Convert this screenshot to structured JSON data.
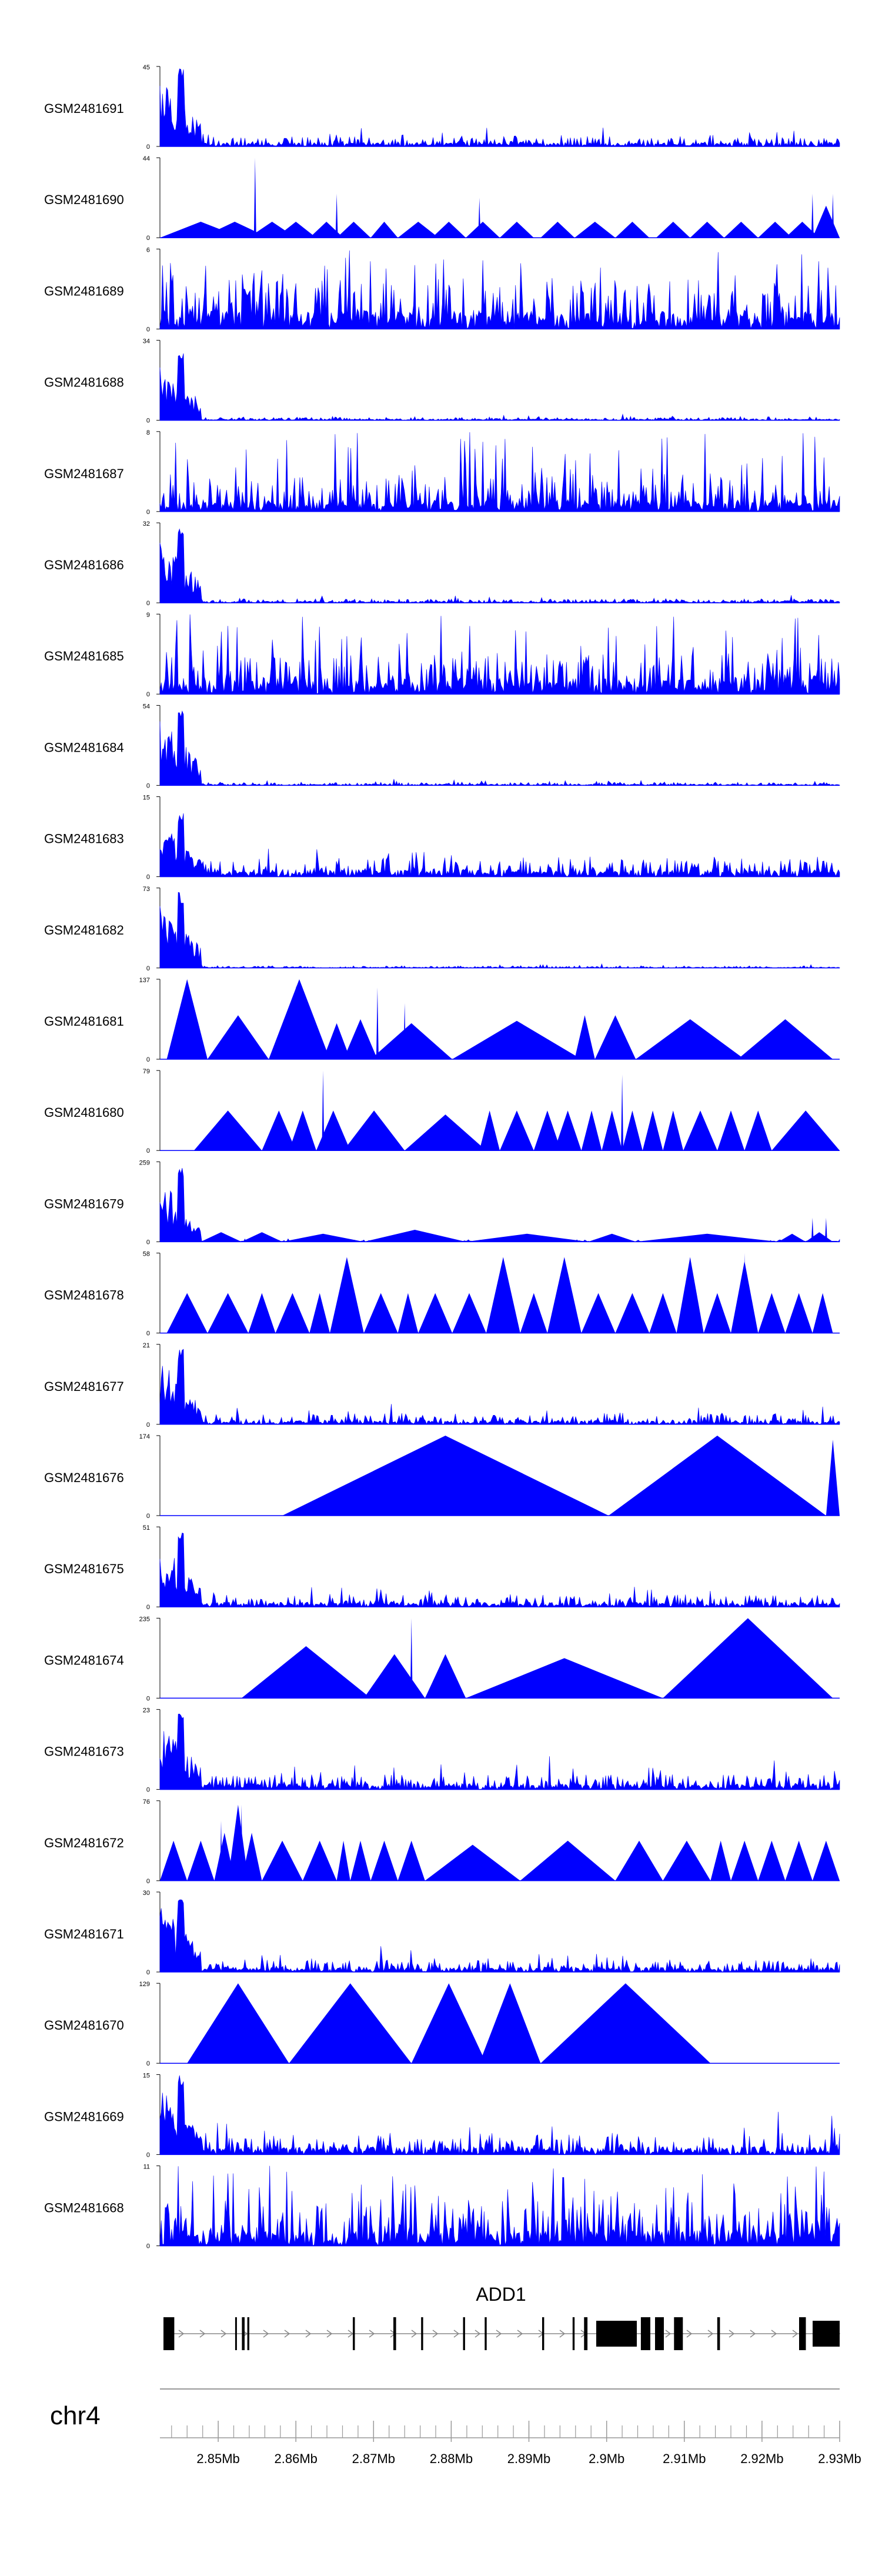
{
  "chart_data": {
    "type": "area",
    "title": "",
    "series_color": "#0000ff",
    "tracks": [
      {
        "name": "GSM2481691",
        "ymax": 45,
        "ymin_label": "0",
        "pattern": "early_peak",
        "seed": 11,
        "level": 0.1,
        "first_peak": 1.0
      },
      {
        "name": "GSM2481690",
        "ymax": 44,
        "ymin_label": "0",
        "pattern": "triangles",
        "seed": 12,
        "peaks": [
          [
            0.0,
            0.12,
            0.2
          ],
          [
            0.06,
            0.16,
            0.2
          ],
          [
            0.13,
            0.2,
            0.2
          ],
          [
            0.17,
            0.23,
            0.2
          ],
          [
            0.22,
            0.27,
            0.2
          ],
          [
            0.26,
            0.31,
            0.2
          ],
          [
            0.31,
            0.35,
            0.2
          ],
          [
            0.35,
            0.41,
            0.2
          ],
          [
            0.4,
            0.45,
            0.2
          ],
          [
            0.45,
            0.5,
            0.2
          ],
          [
            0.5,
            0.55,
            0.2
          ],
          [
            0.56,
            0.61,
            0.2
          ],
          [
            0.61,
            0.67,
            0.2
          ],
          [
            0.67,
            0.72,
            0.2
          ],
          [
            0.73,
            0.78,
            0.2
          ],
          [
            0.78,
            0.83,
            0.2
          ],
          [
            0.83,
            0.88,
            0.2
          ],
          [
            0.88,
            0.93,
            0.2
          ],
          [
            0.92,
            0.97,
            0.2
          ],
          [
            0.96,
            1.0,
            0.4
          ]
        ],
        "spikes": [
          [
            0.14,
            1.0
          ],
          [
            0.26,
            0.55
          ],
          [
            0.47,
            0.5
          ],
          [
            0.96,
            0.55
          ],
          [
            0.99,
            0.55
          ]
        ]
      },
      {
        "name": "GSM2481689",
        "ymax": 6,
        "ymin_label": "0",
        "pattern": "dense",
        "seed": 13,
        "level": 0.45
      },
      {
        "name": "GSM2481688",
        "ymax": 34,
        "ymin_label": "0",
        "pattern": "early_peak",
        "seed": 14,
        "level": 0.03,
        "first_peak": 0.85
      },
      {
        "name": "GSM2481687",
        "ymax": 8,
        "ymin_label": "0",
        "pattern": "dense",
        "seed": 15,
        "level": 0.3
      },
      {
        "name": "GSM2481686",
        "ymax": 32,
        "ymin_label": "0",
        "pattern": "early_peak",
        "seed": 16,
        "level": 0.04,
        "first_peak": 0.95
      },
      {
        "name": "GSM2481685",
        "ymax": 9,
        "ymin_label": "0",
        "pattern": "dense",
        "seed": 17,
        "level": 0.4
      },
      {
        "name": "GSM2481684",
        "ymax": 54,
        "ymin_label": "0",
        "pattern": "early_peak",
        "seed": 18,
        "level": 0.03,
        "first_peak": 1.0
      },
      {
        "name": "GSM2481683",
        "ymax": 15,
        "ymin_label": "0",
        "pattern": "early_peak",
        "seed": 19,
        "level": 0.18,
        "first_peak": 0.8
      },
      {
        "name": "GSM2481682",
        "ymax": 73,
        "ymin_label": "0",
        "pattern": "early_peak",
        "seed": 20,
        "level": 0.02,
        "first_peak": 0.95
      },
      {
        "name": "GSM2481681",
        "ymax": 137,
        "ymin_label": "0",
        "pattern": "triangles",
        "seed": 21,
        "peaks": [
          [
            0.01,
            0.07,
            1.0
          ],
          [
            0.07,
            0.16,
            0.55
          ],
          [
            0.16,
            0.25,
            1.0
          ],
          [
            0.24,
            0.28,
            0.45
          ],
          [
            0.27,
            0.32,
            0.5
          ],
          [
            0.31,
            0.43,
            0.45
          ],
          [
            0.43,
            0.62,
            0.01
          ],
          [
            0.43,
            0.62,
            0.48
          ],
          [
            0.61,
            0.64,
            0.55
          ],
          [
            0.64,
            0.7,
            0.55
          ],
          [
            0.7,
            0.86,
            0.5
          ],
          [
            0.85,
            0.99,
            0.5
          ]
        ],
        "spikes": [
          [
            0.04,
            1.0
          ],
          [
            0.2,
            0.95
          ],
          [
            0.32,
            0.9
          ],
          [
            0.36,
            0.7
          ]
        ]
      },
      {
        "name": "GSM2481680",
        "ymax": 79,
        "ymin_label": "0",
        "pattern": "triangles",
        "seed": 22,
        "peaks": [
          [
            0.05,
            0.15,
            0.5
          ],
          [
            0.15,
            0.2,
            0.5
          ],
          [
            0.19,
            0.23,
            0.5
          ],
          [
            0.23,
            0.28,
            0.5
          ],
          [
            0.27,
            0.36,
            0.5
          ],
          [
            0.36,
            0.45,
            0.01
          ],
          [
            0.36,
            0.48,
            0.45
          ],
          [
            0.47,
            0.5,
            0.5
          ],
          [
            0.5,
            0.55,
            0.5
          ],
          [
            0.55,
            0.59,
            0.5
          ],
          [
            0.58,
            0.62,
            0.5
          ],
          [
            0.62,
            0.65,
            0.5
          ],
          [
            0.65,
            0.68,
            0.5
          ],
          [
            0.68,
            0.71,
            0.5
          ],
          [
            0.71,
            0.74,
            0.5
          ],
          [
            0.74,
            0.77,
            0.5
          ],
          [
            0.77,
            0.82,
            0.5
          ],
          [
            0.82,
            0.86,
            0.5
          ],
          [
            0.86,
            0.9,
            0.5
          ],
          [
            0.9,
            1.0,
            0.5
          ]
        ],
        "spikes": [
          [
            0.24,
            1.0
          ],
          [
            0.68,
            0.95
          ]
        ]
      },
      {
        "name": "GSM2481679",
        "ymax": 259,
        "ymin_label": "0",
        "pattern": "early_peak_tri",
        "seed": 23,
        "level": 0.02,
        "first_peak": 0.95,
        "peaks": [
          [
            0.06,
            0.12,
            0.12
          ],
          [
            0.12,
            0.18,
            0.12
          ],
          [
            0.18,
            0.3,
            0.1
          ],
          [
            0.3,
            0.45,
            0.15
          ],
          [
            0.45,
            0.63,
            0.1
          ],
          [
            0.63,
            0.7,
            0.1
          ],
          [
            0.7,
            0.91,
            0.1
          ],
          [
            0.91,
            0.95,
            0.1
          ],
          [
            0.95,
            0.99,
            0.12
          ]
        ],
        "spikes": [
          [
            0.96,
            0.3
          ],
          [
            0.98,
            0.3
          ]
        ]
      },
      {
        "name": "GSM2481678",
        "ymax": 58,
        "ymin_label": "0",
        "pattern": "triangles",
        "seed": 24,
        "peaks": [
          [
            0.01,
            0.07,
            0.5
          ],
          [
            0.07,
            0.13,
            0.5
          ],
          [
            0.13,
            0.17,
            0.5
          ],
          [
            0.17,
            0.22,
            0.5
          ],
          [
            0.22,
            0.25,
            0.5
          ],
          [
            0.25,
            0.3,
            0.95
          ],
          [
            0.3,
            0.35,
            0.5
          ],
          [
            0.35,
            0.38,
            0.5
          ],
          [
            0.38,
            0.43,
            0.5
          ],
          [
            0.43,
            0.48,
            0.5
          ],
          [
            0.48,
            0.53,
            0.95
          ],
          [
            0.53,
            0.57,
            0.5
          ],
          [
            0.57,
            0.62,
            0.95
          ],
          [
            0.62,
            0.67,
            0.5
          ],
          [
            0.67,
            0.72,
            0.5
          ],
          [
            0.72,
            0.76,
            0.5
          ],
          [
            0.76,
            0.8,
            0.95
          ],
          [
            0.8,
            0.84,
            0.5
          ],
          [
            0.84,
            0.88,
            0.9
          ],
          [
            0.88,
            0.92,
            0.5
          ],
          [
            0.92,
            0.96,
            0.5
          ],
          [
            0.96,
            0.99,
            0.5
          ]
        ],
        "spikes": [
          [
            0.86,
            1.0
          ]
        ]
      },
      {
        "name": "GSM2481677",
        "ymax": 21,
        "ymin_label": "0",
        "pattern": "early_peak",
        "seed": 25,
        "level": 0.1,
        "first_peak": 0.95
      },
      {
        "name": "GSM2481676",
        "ymax": 174,
        "ymin_label": "0",
        "pattern": "triangles",
        "seed": 26,
        "peaks": [
          [
            0.18,
            0.66,
            1.0
          ],
          [
            0.66,
            0.98,
            1.0
          ],
          [
            0.98,
            1.0,
            0.95
          ]
        ],
        "spikes": []
      },
      {
        "name": "GSM2481675",
        "ymax": 51,
        "ymin_label": "0",
        "pattern": "early_peak",
        "seed": 27,
        "level": 0.12,
        "first_peak": 0.95
      },
      {
        "name": "GSM2481674",
        "ymax": 235,
        "ymin_label": "0",
        "pattern": "triangles",
        "seed": 28,
        "peaks": [
          [
            0.12,
            0.31,
            0.65
          ],
          [
            0.3,
            0.37,
            0.01
          ],
          [
            0.3,
            0.39,
            0.55
          ],
          [
            0.39,
            0.45,
            0.55
          ],
          [
            0.45,
            0.74,
            0.5
          ],
          [
            0.74,
            0.99,
            1.0
          ]
        ],
        "spikes": [
          [
            0.37,
            1.0
          ]
        ]
      },
      {
        "name": "GSM2481673",
        "ymax": 23,
        "ymin_label": "0",
        "pattern": "early_peak",
        "seed": 29,
        "level": 0.15,
        "first_peak": 1.0
      },
      {
        "name": "GSM2481672",
        "ymax": 76,
        "ymin_label": "0",
        "pattern": "triangles",
        "seed": 30,
        "peaks": [
          [
            0.0,
            0.04,
            0.5
          ],
          [
            0.04,
            0.08,
            0.5
          ],
          [
            0.08,
            0.11,
            0.6
          ],
          [
            0.1,
            0.13,
            0.95
          ],
          [
            0.12,
            0.15,
            0.6
          ],
          [
            0.15,
            0.21,
            0.5
          ],
          [
            0.21,
            0.26,
            0.5
          ],
          [
            0.26,
            0.28,
            0.5
          ],
          [
            0.28,
            0.31,
            0.5
          ],
          [
            0.31,
            0.35,
            0.5
          ],
          [
            0.35,
            0.39,
            0.5
          ],
          [
            0.39,
            0.53,
            0.45
          ],
          [
            0.53,
            0.67,
            0.5
          ],
          [
            0.67,
            0.74,
            0.5
          ],
          [
            0.74,
            0.81,
            0.5
          ],
          [
            0.81,
            0.84,
            0.5
          ],
          [
            0.84,
            0.88,
            0.5
          ],
          [
            0.88,
            0.92,
            0.5
          ],
          [
            0.92,
            0.96,
            0.5
          ],
          [
            0.96,
            1.0,
            0.5
          ]
        ],
        "spikes": [
          [
            0.09,
            0.75
          ],
          [
            0.12,
            0.95
          ]
        ]
      },
      {
        "name": "GSM2481671",
        "ymax": 30,
        "ymin_label": "0",
        "pattern": "early_peak",
        "seed": 31,
        "level": 0.12,
        "first_peak": 1.0
      },
      {
        "name": "GSM2481670",
        "ymax": 129,
        "ymin_label": "0",
        "pattern": "triangles",
        "seed": 32,
        "peaks": [
          [
            0.04,
            0.19,
            1.0
          ],
          [
            0.19,
            0.37,
            1.0
          ],
          [
            0.37,
            0.48,
            1.0
          ],
          [
            0.47,
            0.56,
            1.0
          ],
          [
            0.56,
            0.81,
            1.0
          ]
        ],
        "spikes": []
      },
      {
        "name": "GSM2481669",
        "ymax": 15,
        "ymin_label": "0",
        "pattern": "early_peak",
        "seed": 33,
        "level": 0.2,
        "first_peak": 1.0
      },
      {
        "name": "GSM2481668",
        "ymax": 11,
        "ymin_label": "0",
        "pattern": "dense",
        "seed": 34,
        "level": 0.4
      }
    ],
    "gene": {
      "name": "ADD1",
      "exons": [
        [
          0.0,
          0.016
        ],
        [
          0.106,
          0.108
        ],
        [
          0.116,
          0.12
        ],
        [
          0.124,
          0.127
        ],
        [
          0.28,
          0.283
        ],
        [
          0.34,
          0.344
        ],
        [
          0.381,
          0.384
        ],
        [
          0.443,
          0.446
        ],
        [
          0.475,
          0.478
        ],
        [
          0.56,
          0.563
        ],
        [
          0.605,
          0.608
        ],
        [
          0.622,
          0.627
        ],
        [
          0.64,
          0.7
        ],
        [
          0.706,
          0.72
        ],
        [
          0.727,
          0.74
        ],
        [
          0.755,
          0.768
        ],
        [
          0.819,
          0.823
        ],
        [
          0.94,
          0.95
        ],
        [
          0.96,
          1.0
        ]
      ]
    },
    "chromosome": "chr4",
    "xaxis": {
      "range": [
        2.8425,
        2.93
      ],
      "major_ticks": [
        {
          "value": 2.85,
          "label": "2.85Mb"
        },
        {
          "value": 2.86,
          "label": "2.86Mb"
        },
        {
          "value": 2.87,
          "label": "2.87Mb"
        },
        {
          "value": 2.88,
          "label": "2.88Mb"
        },
        {
          "value": 2.89,
          "label": "2.89Mb"
        },
        {
          "value": 2.9,
          "label": "2.9Mb"
        },
        {
          "value": 2.91,
          "label": "2.91Mb"
        },
        {
          "value": 2.92,
          "label": "2.92Mb"
        },
        {
          "value": 2.93,
          "label": "2.93Mb"
        }
      ],
      "minor_step": 0.002
    }
  }
}
